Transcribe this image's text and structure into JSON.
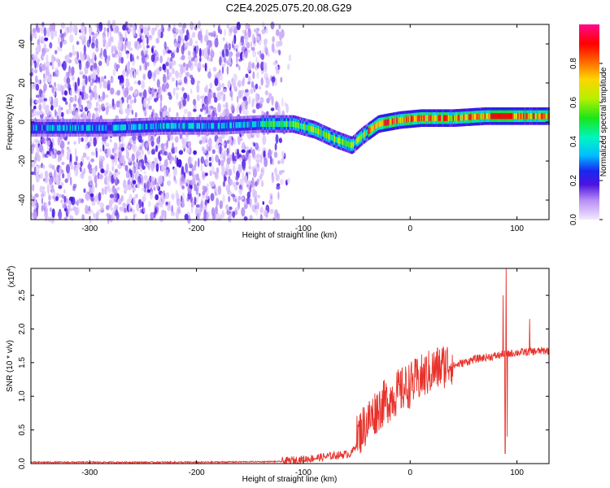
{
  "title": "C2E4.2025.075.20.08.G29",
  "chart_data": [
    {
      "type": "heatmap",
      "xlabel": "Height of straight line (km)",
      "ylabel": "Frequency (Hz)",
      "xlim": [
        -355,
        130
      ],
      "ylim": [
        -50,
        50
      ],
      "xticks": [
        -300,
        -200,
        -100,
        0,
        100
      ],
      "yticks": [
        -40,
        -20,
        0,
        20,
        40
      ],
      "colorbar": {
        "label": "Normalized spectral amplitude",
        "range": [
          0,
          1
        ],
        "ticks": [
          "0.0",
          "0.2",
          "0.4",
          "0.6",
          "0.8"
        ],
        "tick_values": [
          0.0,
          0.2,
          0.4,
          0.6,
          0.8
        ]
      },
      "ridge": {
        "description_values": [
          [
            -330,
            -3
          ],
          [
            -280,
            -3
          ],
          [
            -230,
            -2
          ],
          [
            -180,
            -2
          ],
          [
            -140,
            -1
          ],
          [
            -110,
            -1
          ],
          [
            -90,
            -4
          ],
          [
            -70,
            -9
          ],
          [
            -55,
            -12
          ],
          [
            -45,
            -7
          ],
          [
            -30,
            -1
          ],
          [
            -10,
            1
          ],
          [
            10,
            2
          ],
          [
            40,
            2
          ],
          [
            70,
            3
          ],
          [
            90,
            3
          ],
          [
            130,
            3
          ]
        ]
      }
    },
    {
      "type": "line",
      "xlabel": "Height of straight line (km)",
      "ylabel": "SNR (10 * v/v)",
      "yscale_label": "(x10",
      "yscale_exp": "4",
      "xlim": [
        -355,
        130
      ],
      "ylim": [
        0,
        2.9
      ],
      "xticks": [
        -300,
        -200,
        -100,
        0,
        100
      ],
      "yticks": [
        "0.0",
        "0.5",
        "1.0",
        "1.5",
        "2.0",
        "2.5"
      ],
      "ytick_values": [
        0.0,
        0.5,
        1.0,
        1.5,
        2.0,
        2.5
      ],
      "series": [
        {
          "color": "#e8322b",
          "trend": [
            [
              -355,
              0.02
            ],
            [
              -200,
              0.02
            ],
            [
              -120,
              0.03
            ],
            [
              -90,
              0.08
            ],
            [
              -70,
              0.12
            ],
            [
              -55,
              0.15
            ],
            [
              -45,
              0.45
            ],
            [
              -30,
              0.75
            ],
            [
              -15,
              0.95
            ],
            [
              0,
              1.1
            ],
            [
              20,
              1.3
            ],
            [
              40,
              1.45
            ],
            [
              60,
              1.55
            ],
            [
              80,
              1.6
            ],
            [
              100,
              1.65
            ],
            [
              130,
              1.68
            ]
          ],
          "spikes": [
            [
              87,
              2.5
            ],
            [
              89,
              0.15
            ],
            [
              90,
              2.95
            ],
            [
              91,
              0.4
            ],
            [
              112,
              2.15
            ]
          ]
        }
      ]
    }
  ]
}
